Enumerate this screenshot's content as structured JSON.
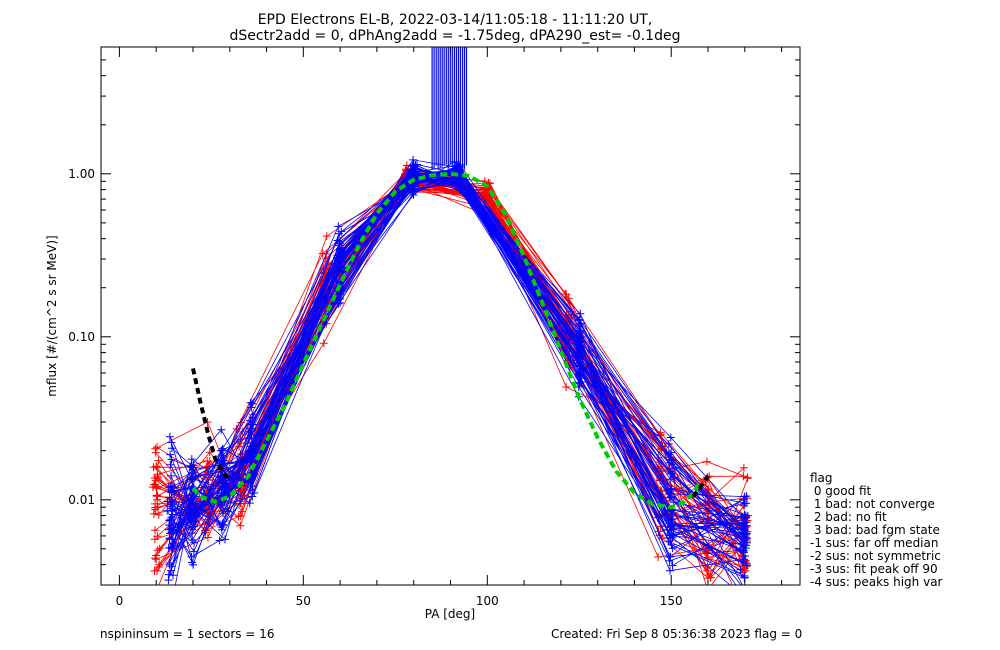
{
  "chart_data": {
    "type": "line",
    "title": "EPD Electrons EL-B, 2022-03-14/11:05:18 - 11:11:20 UT,",
    "subtitle": "dSectr2add = 0, dPhAng2add = -1.75deg, dPA290_est=  -0.1deg",
    "xlabel": "PA [deg]",
    "ylabel": "mflux [#/(cm^2 s sr MeV)]",
    "xlim": [
      -5,
      185
    ],
    "ylim": [
      0.003,
      6
    ],
    "y_scale": "log",
    "x_ticks": [
      0,
      50,
      100,
      150
    ],
    "x_tick_labels": [
      "0",
      "50",
      "100",
      "150"
    ],
    "y_ticks": [
      0.01,
      0.1,
      1.0
    ],
    "y_tick_labels": [
      "0.01",
      "0.10",
      "1.00"
    ],
    "grid": false,
    "colors": {
      "para": "#ff0000",
      "anti": "#0000ff",
      "fit": "#00cc00",
      "loss_cone": "#000000"
    },
    "profile_pa": [
      10,
      14,
      20,
      24,
      28,
      33,
      36,
      45,
      56,
      60,
      78,
      80,
      92,
      100,
      122,
      125,
      147,
      150,
      160,
      170
    ],
    "profile_flux": [
      0.0085,
      0.0085,
      0.0095,
      0.01,
      0.012,
      0.013,
      0.018,
      0.045,
      0.2,
      0.28,
      0.92,
      0.98,
      0.98,
      0.75,
      0.11,
      0.08,
      0.012,
      0.0095,
      0.0075,
      0.006
    ],
    "fit_curve": {
      "pa": [
        20,
        22,
        26,
        30,
        35,
        40,
        45,
        50,
        55,
        60,
        65,
        70,
        75,
        80,
        85,
        90,
        95,
        100,
        105,
        110,
        115,
        120,
        125,
        130,
        135,
        140,
        145,
        150,
        153,
        156,
        158
      ],
      "flux": [
        0.0118,
        0.0105,
        0.0097,
        0.0105,
        0.014,
        0.023,
        0.038,
        0.068,
        0.12,
        0.21,
        0.36,
        0.57,
        0.78,
        0.92,
        0.98,
        1.0,
        0.97,
        0.84,
        0.56,
        0.31,
        0.16,
        0.082,
        0.042,
        0.024,
        0.015,
        0.011,
        0.0094,
        0.009,
        0.0095,
        0.011,
        0.013
      ]
    },
    "loss_cone_curves": [
      {
        "pa": [
          20,
          22,
          24,
          26,
          28,
          30
        ],
        "flux": [
          0.064,
          0.04,
          0.026,
          0.018,
          0.015,
          0.013
        ]
      },
      {
        "pa": [
          156,
          158,
          160
        ],
        "flux": [
          0.0105,
          0.012,
          0.014
        ]
      }
    ],
    "legend": {
      "title": "flag",
      "items": [
        " 0 good fit",
        " 1 bad: not converge",
        " 2 bad: no fit",
        " 3 bad: bad fgm state",
        "-1 sus: far off median",
        "-2 sus: not symmetric",
        "-3 sus: fit peak off 90",
        "-4 sus: peaks high var"
      ]
    }
  },
  "footer": {
    "left": "nspininsum =  1  sectors = 16",
    "right": "Created: Fri Sep  8 05:36:38 2023   flag = 0"
  }
}
